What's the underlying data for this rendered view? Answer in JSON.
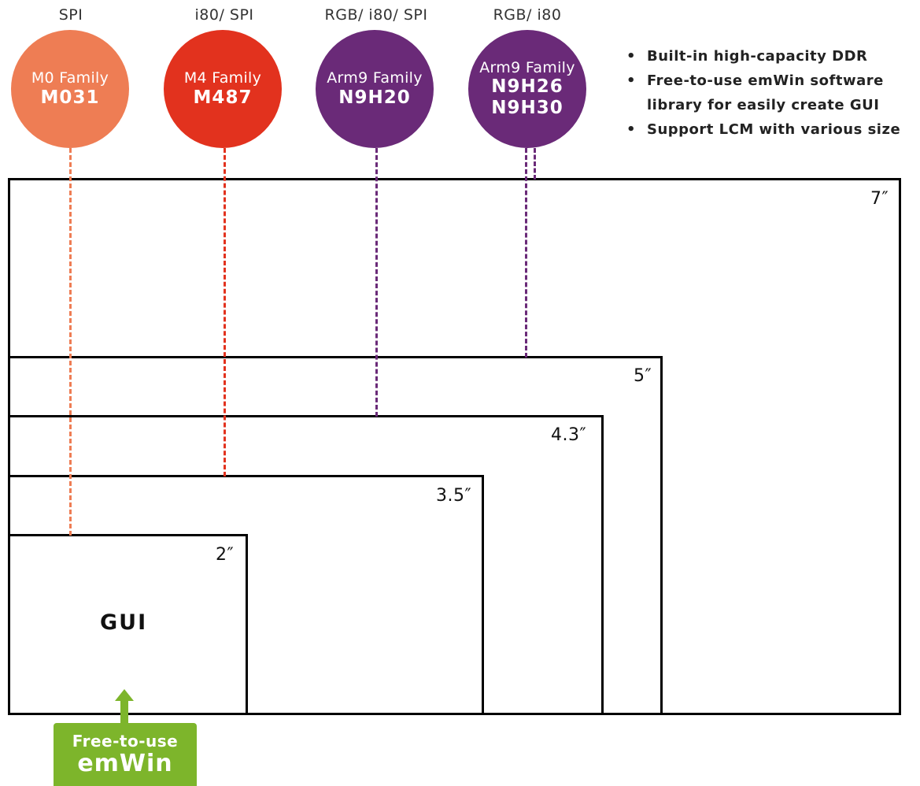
{
  "families": [
    {
      "interface": "SPI",
      "family": "M0 Family",
      "models": [
        "M031"
      ],
      "color": "#ee7d54"
    },
    {
      "interface": "i80/ SPI",
      "family": "M4 Family",
      "models": [
        "M487"
      ],
      "color": "#e2321e"
    },
    {
      "interface": "RGB/ i80/ SPI",
      "family": "Arm9 Family",
      "models": [
        "N9H20"
      ],
      "color": "#6a2a78"
    },
    {
      "interface": "RGB/ i80",
      "family": "Arm9 Family",
      "models": [
        "N9H26",
        "N9H30"
      ],
      "color": "#6a2a78"
    }
  ],
  "features": [
    [
      "Built-in high-capacity DDR"
    ],
    [
      "Free-to-use emWin software",
      "library for easily create GUI"
    ],
    [
      "Support LCM with various size"
    ]
  ],
  "lcm_sizes": [
    "7″",
    "5″",
    "4.3″",
    "3.5″",
    "2″"
  ],
  "gui_label": "GUI",
  "emwin": {
    "line1": "Free-to-use",
    "line2": "emWin",
    "color": "#7db52b"
  },
  "bullet": "•"
}
